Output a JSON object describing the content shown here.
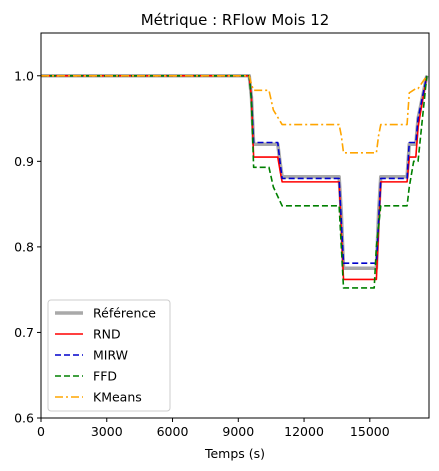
{
  "chart_data": {
    "type": "line",
    "title": "Métrique : RFlow Mois 12",
    "xlabel": "Temps (s)",
    "ylabel": "",
    "xlim": [
      0,
      17700
    ],
    "ylim": [
      0.6,
      1.05
    ],
    "xticks": [
      0,
      3000,
      6000,
      9000,
      12000,
      15000
    ],
    "xtick_labels": [
      "0",
      "3000",
      "6000",
      "9000",
      "12000",
      "15000"
    ],
    "yticks": [
      0.6,
      0.7,
      0.8,
      0.9,
      1.0
    ],
    "ytick_labels": [
      "0.6",
      "0.7",
      "0.8",
      "0.9",
      "1.0"
    ],
    "grid": false,
    "legend": "lower-left",
    "series": [
      {
        "name": "Référence",
        "color": "#a9a9a9",
        "style": "solid",
        "x": [
          0,
          9500,
          9600,
          9700,
          10800,
          10900,
          11000,
          13600,
          13700,
          13800,
          15300,
          15400,
          15500,
          16700,
          16800,
          17100,
          17200,
          17600
        ],
        "y": [
          1.0,
          1.0,
          0.975,
          0.92,
          0.92,
          0.9,
          0.882,
          0.882,
          0.84,
          0.775,
          0.775,
          0.84,
          0.882,
          0.882,
          0.92,
          0.92,
          0.95,
          1.0
        ]
      },
      {
        "name": "RND",
        "color": "#ff0000",
        "style": "solid",
        "x": [
          0,
          9500,
          9600,
          9700,
          10800,
          10900,
          11000,
          13600,
          13700,
          13800,
          15300,
          15400,
          15500,
          16700,
          16800,
          17100,
          17200,
          17600
        ],
        "y": [
          1.0,
          1.0,
          0.975,
          0.905,
          0.905,
          0.89,
          0.876,
          0.876,
          0.82,
          0.762,
          0.762,
          0.82,
          0.876,
          0.876,
          0.905,
          0.905,
          0.94,
          1.0
        ]
      },
      {
        "name": "MIRW",
        "color": "#0000cc",
        "style": "dashed",
        "x": [
          0,
          9500,
          9600,
          9700,
          10800,
          10900,
          11000,
          13600,
          13700,
          13800,
          15300,
          15400,
          15500,
          16700,
          16800,
          17100,
          17200,
          17600
        ],
        "y": [
          1.0,
          1.0,
          0.975,
          0.922,
          0.922,
          0.9,
          0.88,
          0.88,
          0.83,
          0.781,
          0.781,
          0.83,
          0.88,
          0.88,
          0.922,
          0.922,
          0.95,
          1.0
        ]
      },
      {
        "name": "FFD",
        "color": "#008000",
        "style": "dashed",
        "x": [
          0,
          9500,
          9600,
          9700,
          10400,
          10600,
          11000,
          13600,
          13700,
          13800,
          15200,
          15300,
          15500,
          16700,
          16800,
          17000,
          17200,
          17600
        ],
        "y": [
          1.0,
          1.0,
          0.97,
          0.893,
          0.893,
          0.87,
          0.848,
          0.848,
          0.8,
          0.752,
          0.752,
          0.8,
          0.848,
          0.848,
          0.87,
          0.9,
          0.9,
          1.0
        ]
      },
      {
        "name": "KMeans",
        "color": "#ffa500",
        "style": "dashdot",
        "x": [
          0,
          9500,
          9600,
          9700,
          10400,
          10600,
          11000,
          13600,
          13700,
          13800,
          15300,
          15400,
          15500,
          16700,
          16800,
          17100,
          17200,
          17600
        ],
        "y": [
          1.0,
          1.0,
          0.99,
          0.983,
          0.983,
          0.96,
          0.943,
          0.943,
          0.93,
          0.91,
          0.91,
          0.93,
          0.943,
          0.943,
          0.98,
          0.985,
          0.985,
          1.0
        ]
      }
    ]
  }
}
